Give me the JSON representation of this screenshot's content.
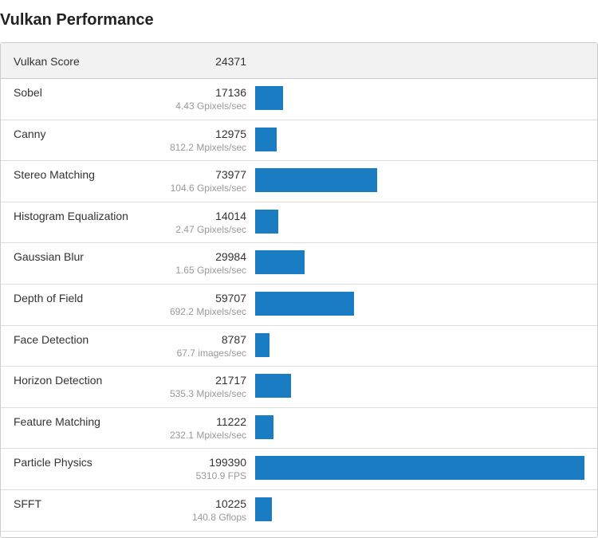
{
  "title": "Vulkan Performance",
  "header": {
    "label": "Vulkan Score",
    "score": 24371
  },
  "rows": [
    {
      "name": "Sobel",
      "score": 17136,
      "rate": "4.43 Gpixels/sec"
    },
    {
      "name": "Canny",
      "score": 12975,
      "rate": "812.2 Mpixels/sec"
    },
    {
      "name": "Stereo Matching",
      "score": 73977,
      "rate": "104.6 Gpixels/sec"
    },
    {
      "name": "Histogram Equalization",
      "score": 14014,
      "rate": "2.47 Gpixels/sec"
    },
    {
      "name": "Gaussian Blur",
      "score": 29984,
      "rate": "1.65 Gpixels/sec"
    },
    {
      "name": "Depth of Field",
      "score": 59707,
      "rate": "692.2 Mpixels/sec"
    },
    {
      "name": "Face Detection",
      "score": 8787,
      "rate": "67.7 images/sec"
    },
    {
      "name": "Horizon Detection",
      "score": 21717,
      "rate": "535.3 Mpixels/sec"
    },
    {
      "name": "Feature Matching",
      "score": 11222,
      "rate": "232.1 Mpixels/sec"
    },
    {
      "name": "Particle Physics",
      "score": 199390,
      "rate": "5310.9 FPS"
    },
    {
      "name": "SFFT",
      "score": 10225,
      "rate": "140.8 Gflops"
    }
  ]
}
